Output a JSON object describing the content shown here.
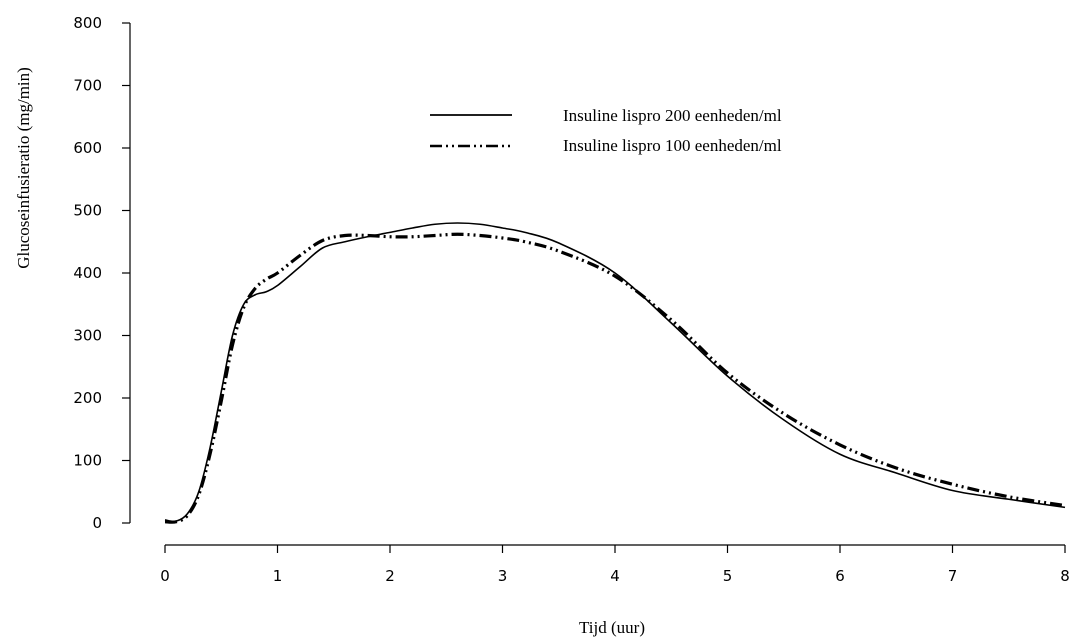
{
  "chart_data": {
    "type": "line",
    "title": "",
    "xlabel": "Tijd (uur)",
    "ylabel": "Glucoseinfusieratio (mg/min)",
    "xlim": [
      0,
      8
    ],
    "ylim": [
      0,
      800
    ],
    "x_ticks": [
      "0",
      "1",
      "2",
      "3",
      "4",
      "5",
      "6",
      "7",
      "8"
    ],
    "y_ticks": [
      "0",
      "100",
      "200",
      "300",
      "400",
      "500",
      "600",
      "700",
      "800"
    ],
    "grid": false,
    "legend_position": "top-center",
    "series": [
      {
        "name": "Insuline lispro 200 eenheden/ml",
        "style": "solid",
        "color": "#000000",
        "x": [
          0,
          0.1,
          0.2,
          0.3,
          0.4,
          0.5,
          0.6,
          0.7,
          0.8,
          0.9,
          1.0,
          1.2,
          1.4,
          1.6,
          1.8,
          2.0,
          2.2,
          2.4,
          2.6,
          2.8,
          3.0,
          3.2,
          3.5,
          4.0,
          4.5,
          5.0,
          5.5,
          6.0,
          6.5,
          7.0,
          7.5,
          8.0
        ],
        "y": [
          5,
          3,
          15,
          50,
          120,
          210,
          300,
          350,
          365,
          370,
          380,
          410,
          440,
          450,
          458,
          465,
          472,
          478,
          480,
          478,
          472,
          465,
          448,
          400,
          320,
          235,
          165,
          110,
          80,
          52,
          38,
          25
        ]
      },
      {
        "name": "Insuline lispro 100 eenheden/ml",
        "style": "dash-dot-dot",
        "color": "#000000",
        "x": [
          0,
          0.1,
          0.2,
          0.3,
          0.4,
          0.5,
          0.6,
          0.7,
          0.8,
          0.9,
          1.0,
          1.2,
          1.4,
          1.6,
          1.8,
          2.0,
          2.2,
          2.4,
          2.6,
          2.8,
          3.0,
          3.2,
          3.5,
          4.0,
          4.5,
          5.0,
          5.5,
          6.0,
          6.5,
          7.0,
          7.5,
          8.0
        ],
        "y": [
          2,
          2,
          12,
          45,
          110,
          195,
          285,
          345,
          375,
          390,
          400,
          428,
          452,
          460,
          460,
          458,
          458,
          460,
          462,
          460,
          456,
          450,
          435,
          395,
          325,
          240,
          175,
          125,
          88,
          62,
          42,
          28
        ]
      }
    ]
  }
}
